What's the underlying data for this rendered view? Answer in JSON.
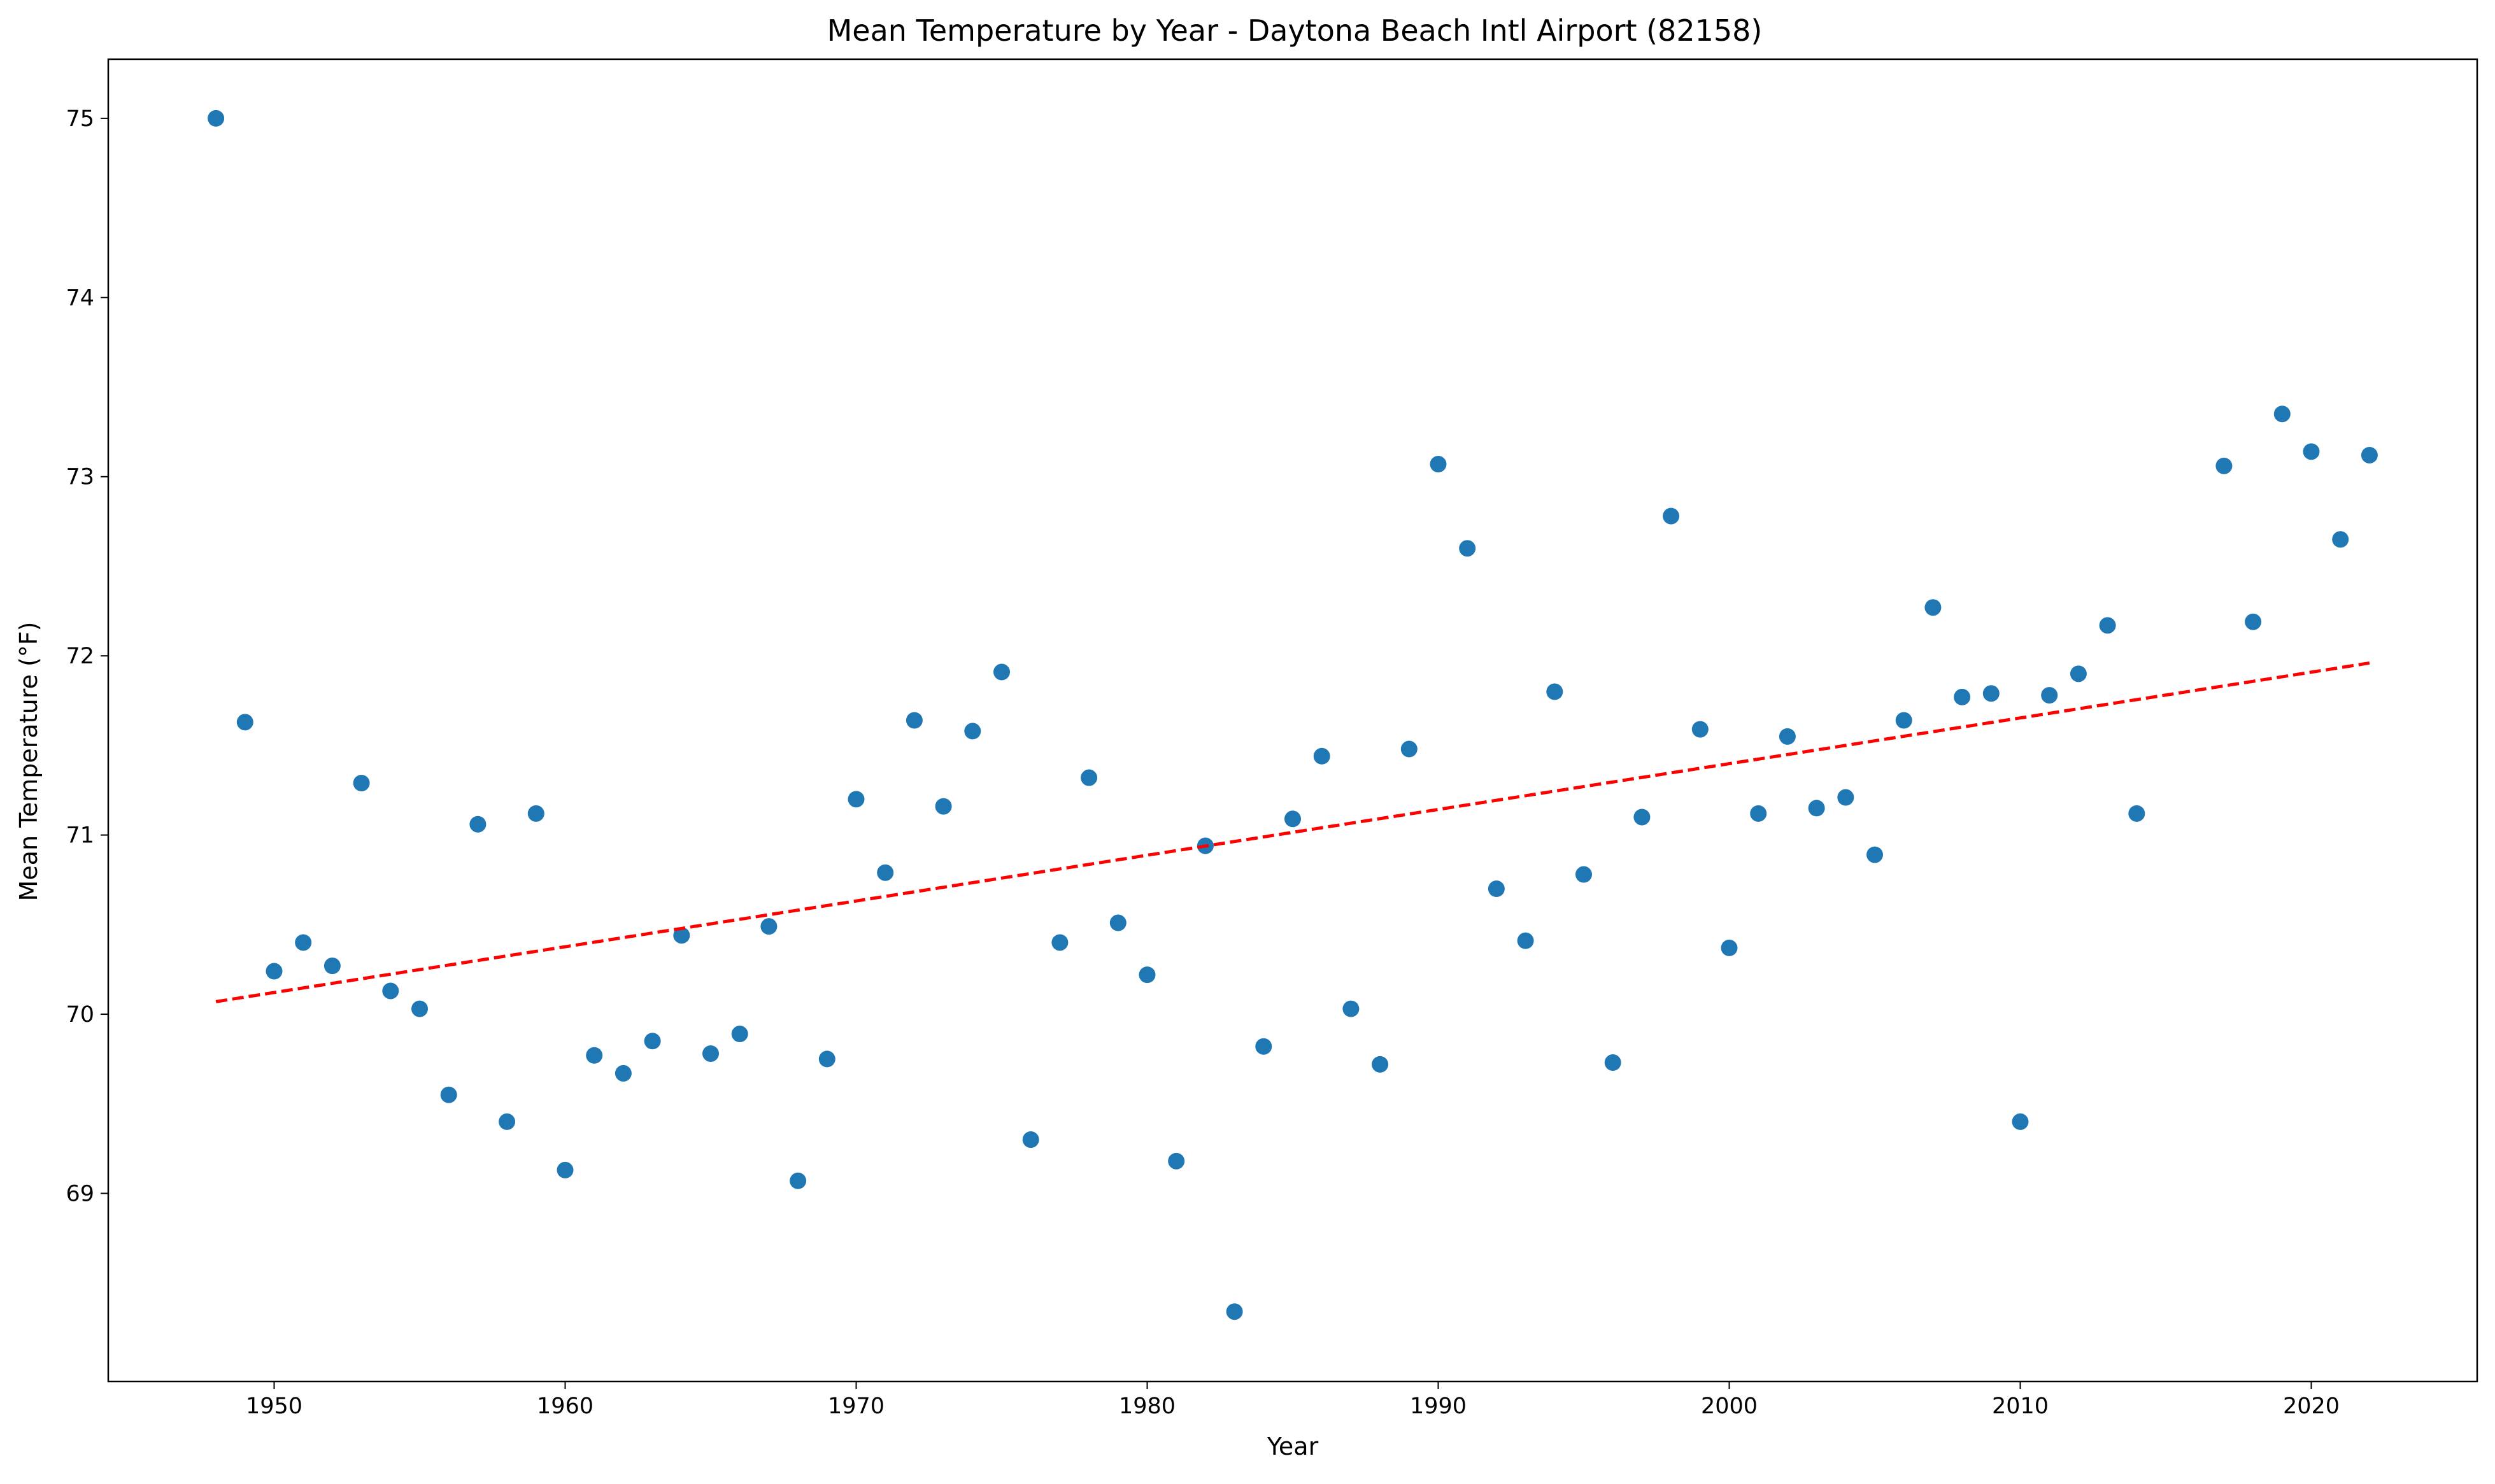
{
  "chart_data": {
    "type": "scatter",
    "title": "Mean Temperature by Year - Daytona Beach Intl Airport (82158)",
    "xlabel": "Year",
    "ylabel": "Mean Temperature (°F)",
    "xlim": [
      1944.3,
      2025.7
    ],
    "ylim": [
      67.95,
      75.33
    ],
    "xticks": [
      1950,
      1960,
      1970,
      1980,
      1990,
      2000,
      2010,
      2020
    ],
    "yticks": [
      69,
      70,
      71,
      72,
      73,
      74,
      75
    ],
    "grid": false,
    "legend": "none",
    "series": [
      {
        "marker_color": "#1f77b4",
        "x": [
          1948,
          1949,
          1950,
          1951,
          1952,
          1953,
          1954,
          1955,
          1956,
          1957,
          1958,
          1959,
          1960,
          1961,
          1962,
          1963,
          1964,
          1965,
          1966,
          1967,
          1968,
          1969,
          1970,
          1971,
          1972,
          1973,
          1974,
          1975,
          1976,
          1977,
          1978,
          1979,
          1980,
          1981,
          1982,
          1983,
          1984,
          1985,
          1986,
          1987,
          1988,
          1989,
          1990,
          1991,
          1992,
          1993,
          1994,
          1995,
          1996,
          1997,
          1998,
          1999,
          2000,
          2001,
          2002,
          2003,
          2004,
          2005,
          2006,
          2007,
          2008,
          2009,
          2010,
          2011,
          2012,
          2013,
          2014,
          2017,
          2018,
          2019,
          2020,
          2021,
          2022
        ],
        "y": [
          75.0,
          71.63,
          70.24,
          70.4,
          70.27,
          71.29,
          70.13,
          70.03,
          69.55,
          71.06,
          69.4,
          71.12,
          69.13,
          69.77,
          69.67,
          69.85,
          70.44,
          69.78,
          69.89,
          70.49,
          69.07,
          69.75,
          71.2,
          70.79,
          71.64,
          71.16,
          71.58,
          71.91,
          69.3,
          70.4,
          71.32,
          70.51,
          70.22,
          69.18,
          70.94,
          68.34,
          69.82,
          71.09,
          71.44,
          70.03,
          69.72,
          71.48,
          73.07,
          72.6,
          70.7,
          70.41,
          71.8,
          70.78,
          69.73,
          71.1,
          72.78,
          71.59,
          70.37,
          71.12,
          71.55,
          71.15,
          71.21,
          70.89,
          71.64,
          72.27,
          71.77,
          71.79,
          69.4,
          71.78,
          71.9,
          72.17,
          71.12,
          73.06,
          72.19,
          73.35,
          73.14,
          72.65,
          73.12
        ]
      },
      {
        "style": "dashed",
        "line_color": "#ff0000",
        "x": [
          1948,
          2022
        ],
        "y": [
          70.07,
          71.96
        ]
      }
    ]
  }
}
